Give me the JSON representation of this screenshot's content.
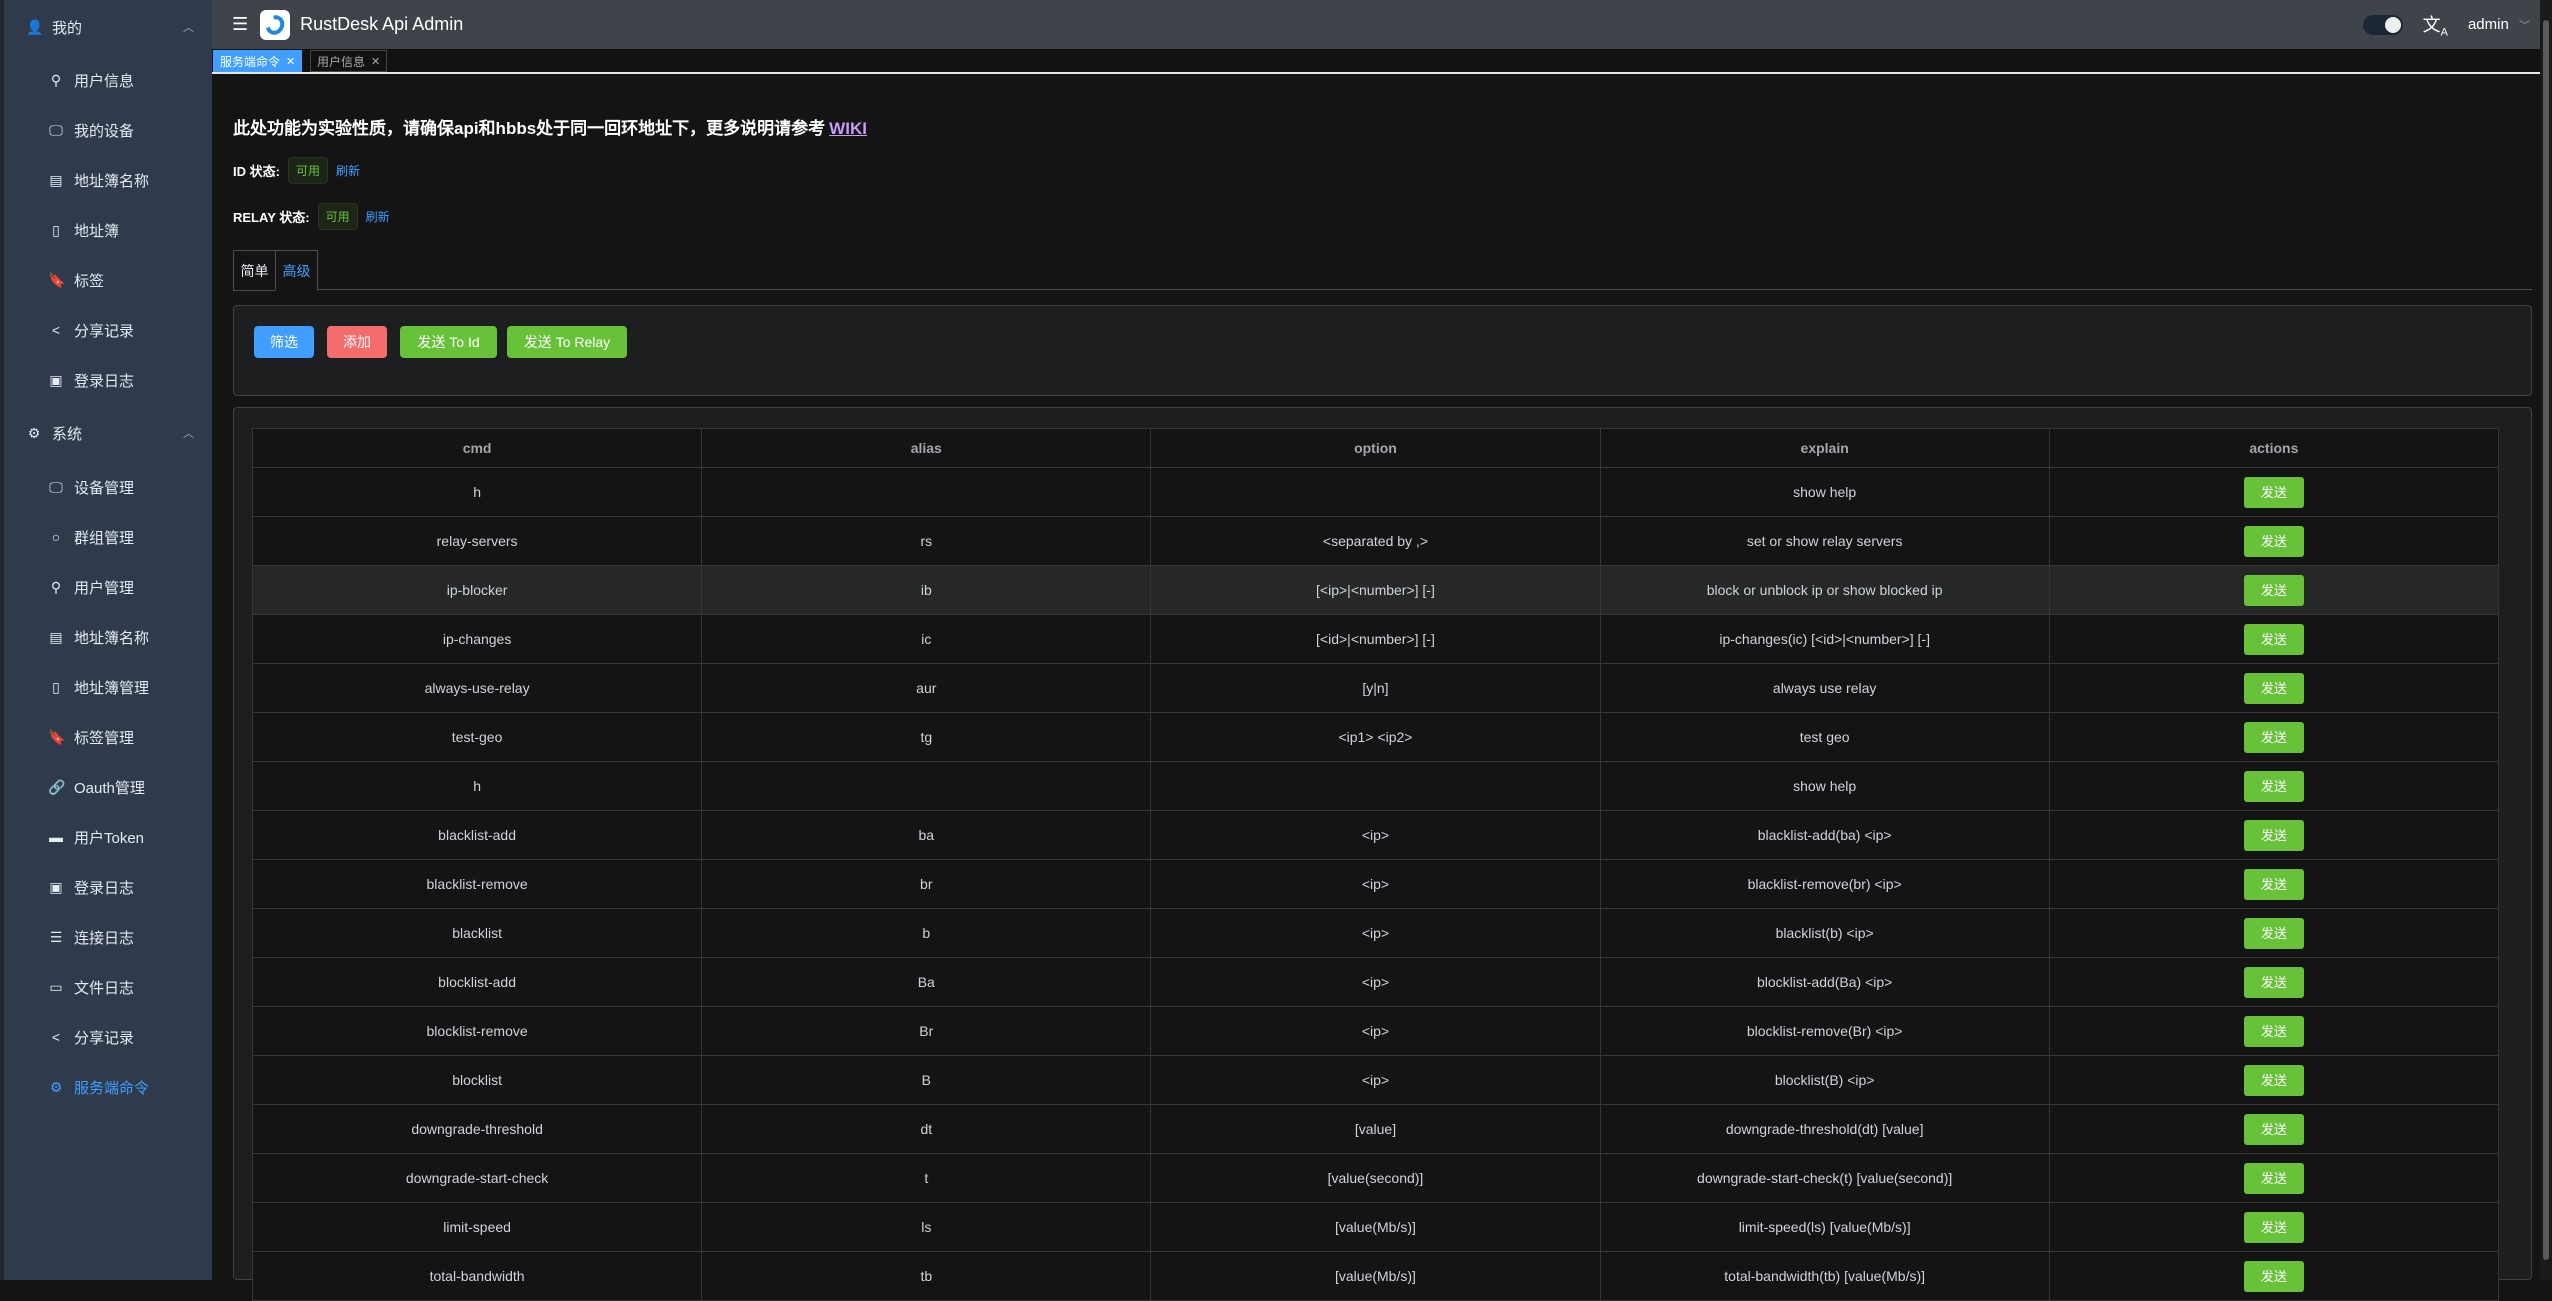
{
  "sidebar": {
    "groups": [
      {
        "label": "我的",
        "icon": "user-icon"
      },
      {
        "label": "系统",
        "icon": "gear-icon"
      }
    ],
    "my_items": [
      {
        "label": "用户信息",
        "icon": "user-outline-icon"
      },
      {
        "label": "我的设备",
        "icon": "monitor-icon"
      },
      {
        "label": "地址簿名称",
        "icon": "book-icon"
      },
      {
        "label": "地址簿",
        "icon": "notebook-icon"
      },
      {
        "label": "标签",
        "icon": "bookmark-icon"
      },
      {
        "label": "分享记录",
        "icon": "share-icon"
      },
      {
        "label": "登录日志",
        "icon": "clipboard-icon"
      }
    ],
    "system_items": [
      {
        "label": "设备管理",
        "icon": "monitor-icon"
      },
      {
        "label": "群组管理",
        "icon": "chat-icon"
      },
      {
        "label": "用户管理",
        "icon": "user-outline-icon"
      },
      {
        "label": "地址簿名称",
        "icon": "book-icon"
      },
      {
        "label": "地址簿管理",
        "icon": "notebook-icon"
      },
      {
        "label": "标签管理",
        "icon": "bookmark-icon"
      },
      {
        "label": "Oauth管理",
        "icon": "link-icon"
      },
      {
        "label": "用户Token",
        "icon": "ticket-icon"
      },
      {
        "label": "登录日志",
        "icon": "clipboard-icon"
      },
      {
        "label": "连接日志",
        "icon": "document-icon"
      },
      {
        "label": "文件日志",
        "icon": "files-icon"
      },
      {
        "label": "分享记录",
        "icon": "share-icon"
      },
      {
        "label": "服务端命令",
        "icon": "gear-icon",
        "active": true
      }
    ]
  },
  "header": {
    "title": "RustDesk Api Admin",
    "user": "admin"
  },
  "page_tabs": [
    {
      "label": "服务端命令",
      "active": true
    },
    {
      "label": "用户信息",
      "active": false
    }
  ],
  "notice": {
    "text": "此处功能为实验性质，请确保api和hbbs处于同一回环地址下，更多说明请参考",
    "link": "WIKI"
  },
  "id_status": {
    "label": "ID 状态:",
    "value": "可用",
    "refresh": "刷新"
  },
  "relay_status": {
    "label": "RELAY 状态:",
    "value": "可用",
    "refresh": "刷新"
  },
  "content_tabs": [
    {
      "label": "简单",
      "active": false
    },
    {
      "label": "高级",
      "active": true
    }
  ],
  "toolbar": {
    "filter": "筛选",
    "add": "添加",
    "send_id": "发送 To Id",
    "send_relay": "发送 To Relay"
  },
  "colors": {
    "primary": "#409eff",
    "danger": "#f56c6c",
    "success": "#67c23a"
  },
  "table": {
    "columns": [
      "cmd",
      "alias",
      "option",
      "explain",
      "actions"
    ],
    "action_label": "发送",
    "rows": [
      [
        "h",
        "",
        "",
        "show help"
      ],
      [
        "relay-servers",
        "rs",
        "<separated by ,>",
        "set or show relay servers"
      ],
      [
        "ip-blocker",
        "ib",
        "[<ip>|<number>] [-]",
        "block or unblock ip or show blocked ip"
      ],
      [
        "ip-changes",
        "ic",
        "[<id>|<number>] [-]",
        "ip-changes(ic) [<id>|<number>] [-]"
      ],
      [
        "always-use-relay",
        "aur",
        "[y|n]",
        "always use relay"
      ],
      [
        "test-geo",
        "tg",
        "<ip1> <ip2>",
        "test geo"
      ],
      [
        "h",
        "",
        "",
        "show help"
      ],
      [
        "blacklist-add",
        "ba",
        "<ip>",
        "blacklist-add(ba) <ip>"
      ],
      [
        "blacklist-remove",
        "br",
        "<ip>",
        "blacklist-remove(br) <ip>"
      ],
      [
        "blacklist",
        "b",
        "<ip>",
        "blacklist(b) <ip>"
      ],
      [
        "blocklist-add",
        "Ba",
        "<ip>",
        "blocklist-add(Ba) <ip>"
      ],
      [
        "blocklist-remove",
        "Br",
        "<ip>",
        "blocklist-remove(Br) <ip>"
      ],
      [
        "blocklist",
        "B",
        "<ip>",
        "blocklist(B) <ip>"
      ],
      [
        "downgrade-threshold",
        "dt",
        "[value]",
        "downgrade-threshold(dt) [value]"
      ],
      [
        "downgrade-start-check",
        "t",
        "[value(second)]",
        "downgrade-start-check(t) [value(second)]"
      ],
      [
        "limit-speed",
        "ls",
        "[value(Mb/s)]",
        "limit-speed(ls) [value(Mb/s)]"
      ],
      [
        "total-bandwidth",
        "tb",
        "[value(Mb/s)]",
        "total-bandwidth(tb) [value(Mb/s)]"
      ]
    ]
  }
}
